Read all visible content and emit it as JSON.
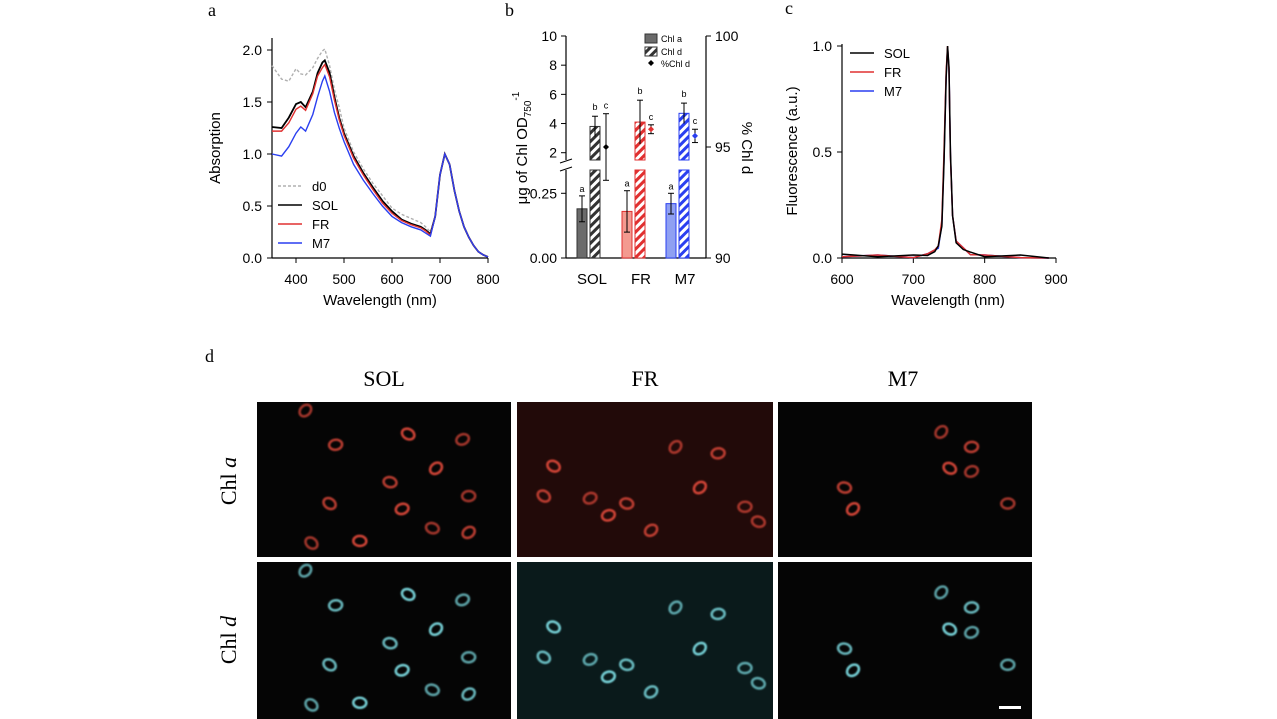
{
  "panel_letters": {
    "a": "a",
    "b": "b",
    "c": "c",
    "d": "d"
  },
  "colors": {
    "sol": "#000000",
    "fr": "#e03030",
    "m7": "#2a3ff0",
    "d0": "#b0b0b0",
    "chla_cell": "#e0483a",
    "chld_cell": "#7fe0e6"
  },
  "chart_data": [
    {
      "type": "line",
      "panel": "a",
      "xlabel": "Wavelength (nm)",
      "ylabel": "Absorption",
      "xlim": [
        350,
        800
      ],
      "ylim": [
        0.0,
        2.0
      ],
      "xticks": [
        "400",
        "500",
        "600",
        "700",
        "800"
      ],
      "yticks": [
        "0.0",
        "0.5",
        "1.0",
        "1.5",
        "2.0"
      ],
      "legend": [
        "d0",
        "SOL",
        "FR",
        "M7"
      ],
      "legend_position": "lower-left",
      "x": [
        350,
        370,
        385,
        400,
        410,
        420,
        435,
        445,
        455,
        460,
        470,
        480,
        490,
        500,
        520,
        540,
        560,
        580,
        600,
        620,
        640,
        660,
        670,
        680,
        690,
        700,
        710,
        720,
        730,
        740,
        750,
        760,
        770,
        780,
        790,
        800
      ],
      "series": [
        {
          "name": "d0",
          "values": [
            1.85,
            1.72,
            1.7,
            1.82,
            1.77,
            1.76,
            1.83,
            1.92,
            1.99,
            2.01,
            1.85,
            1.62,
            1.45,
            1.25,
            1.02,
            0.86,
            0.72,
            0.6,
            0.48,
            0.42,
            0.38,
            0.34,
            0.3,
            0.25,
            0.4,
            0.8,
            1.0,
            0.9,
            0.65,
            0.45,
            0.3,
            0.2,
            0.12,
            0.06,
            0.03,
            0.01
          ]
        },
        {
          "name": "SOL",
          "values": [
            1.26,
            1.25,
            1.35,
            1.48,
            1.5,
            1.45,
            1.6,
            1.78,
            1.88,
            1.9,
            1.78,
            1.55,
            1.35,
            1.2,
            0.98,
            0.82,
            0.68,
            0.55,
            0.45,
            0.37,
            0.33,
            0.3,
            0.27,
            0.23,
            0.4,
            0.8,
            1.0,
            0.9,
            0.65,
            0.45,
            0.3,
            0.2,
            0.12,
            0.06,
            0.03,
            0.01
          ]
        },
        {
          "name": "FR",
          "values": [
            1.22,
            1.22,
            1.3,
            1.43,
            1.46,
            1.42,
            1.58,
            1.75,
            1.83,
            1.86,
            1.74,
            1.52,
            1.33,
            1.18,
            0.96,
            0.8,
            0.66,
            0.53,
            0.43,
            0.36,
            0.32,
            0.29,
            0.26,
            0.22,
            0.4,
            0.8,
            1.0,
            0.9,
            0.65,
            0.45,
            0.3,
            0.2,
            0.12,
            0.06,
            0.03,
            0.01
          ]
        },
        {
          "name": "M7",
          "values": [
            1.0,
            0.98,
            1.07,
            1.2,
            1.26,
            1.22,
            1.38,
            1.55,
            1.7,
            1.75,
            1.6,
            1.4,
            1.25,
            1.12,
            0.9,
            0.75,
            0.62,
            0.5,
            0.4,
            0.34,
            0.3,
            0.27,
            0.24,
            0.21,
            0.4,
            0.8,
            1.0,
            0.9,
            0.65,
            0.45,
            0.3,
            0.2,
            0.12,
            0.06,
            0.03,
            0.01
          ]
        }
      ]
    },
    {
      "type": "bar",
      "panel": "b",
      "ylabel": "μg of Chl OD",
      "ylabel_sub": "750",
      "ylabel_sup": "-1",
      "ylabel_right": "% Chl d",
      "categories": [
        "SOL",
        "FR",
        "M7"
      ],
      "yticks_upper": [
        "2",
        "4",
        "6",
        "8",
        "10"
      ],
      "yticks_lower": [
        "0.00",
        "0.25"
      ],
      "yticks_right": [
        "90",
        "95",
        "100"
      ],
      "ylim_upper": [
        1.5,
        10
      ],
      "ylim_lower": [
        0.0,
        0.34
      ],
      "ylim_right": [
        90,
        100
      ],
      "legend": [
        "Chl a",
        "Chl d",
        "%Chl d"
      ],
      "series": [
        {
          "name": "Chl a",
          "values": [
            0.19,
            0.18,
            0.21
          ],
          "errors": [
            0.05,
            0.08,
            0.04
          ],
          "letters": [
            "a",
            "a",
            "a"
          ],
          "scale": "lower"
        },
        {
          "name": "Chl d",
          "values": [
            3.8,
            4.1,
            4.7
          ],
          "errors": [
            0.7,
            1.5,
            0.7
          ],
          "letters": [
            "b",
            "b",
            "b"
          ],
          "scale": "upper"
        },
        {
          "name": "%Chl d",
          "values": [
            95.0,
            95.8,
            95.5
          ],
          "errors": [
            1.5,
            0.2,
            0.3
          ],
          "letters": [
            "c",
            "c",
            "c"
          ],
          "scale": "right"
        }
      ]
    },
    {
      "type": "line",
      "panel": "c",
      "xlabel": "Wavelength (nm)",
      "ylabel": "Fluorescence (a.u.)",
      "xlim": [
        600,
        900
      ],
      "ylim": [
        0.0,
        1.0
      ],
      "xticks": [
        "600",
        "700",
        "800",
        "900"
      ],
      "yticks": [
        "0.0",
        "0.5",
        "1.0"
      ],
      "legend": [
        "SOL",
        "FR",
        "M7"
      ],
      "legend_position": "top-left",
      "x": [
        600,
        650,
        700,
        720,
        730,
        735,
        740,
        743,
        746,
        748,
        750,
        752,
        755,
        760,
        770,
        780,
        800,
        850,
        890
      ],
      "series": [
        {
          "name": "SOL",
          "values": [
            0.01,
            0.01,
            0.01,
            0.02,
            0.03,
            0.05,
            0.15,
            0.45,
            0.85,
            1.0,
            0.9,
            0.5,
            0.2,
            0.08,
            0.04,
            0.02,
            0.01,
            0.01,
            0.0
          ]
        },
        {
          "name": "FR",
          "values": [
            0.01,
            0.01,
            0.01,
            0.02,
            0.03,
            0.06,
            0.18,
            0.5,
            0.88,
            1.0,
            0.88,
            0.48,
            0.2,
            0.08,
            0.04,
            0.02,
            0.01,
            0.01,
            0.0
          ]
        },
        {
          "name": "M7",
          "values": [
            0.01,
            0.01,
            0.01,
            0.02,
            0.03,
            0.05,
            0.16,
            0.47,
            0.86,
            0.99,
            0.89,
            0.49,
            0.2,
            0.08,
            0.04,
            0.02,
            0.01,
            0.01,
            0.0
          ]
        }
      ]
    }
  ],
  "micrograph": {
    "columns": [
      "SOL",
      "FR",
      "M7"
    ],
    "rows": [
      {
        "label_prefix": "Chl ",
        "label_italic": "a"
      },
      {
        "label_prefix": "Chl ",
        "label_italic": "d"
      }
    ]
  }
}
